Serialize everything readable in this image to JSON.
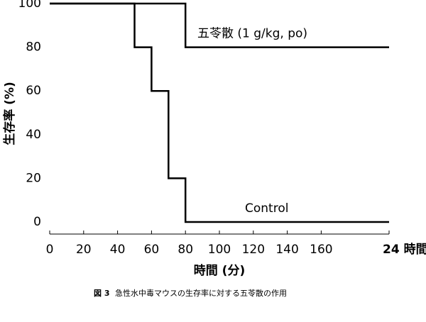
{
  "chart_data": {
    "type": "step",
    "x_label": "時間 (分)",
    "y_label": "生存率 (%)",
    "caption_number": "図 3",
    "caption": "急性水中毒マウスの生存率に対する五苓散の作用",
    "xlim": [
      0,
      1440
    ],
    "x_break": [
      180,
      1440
    ],
    "xticks": [
      0,
      20,
      40,
      60,
      80,
      100,
      120,
      140,
      160,
      {
        "value": 1440,
        "label": "24 時間"
      }
    ],
    "ylim": [
      0,
      100
    ],
    "yticks": [
      0,
      20,
      40,
      60,
      80,
      100
    ],
    "series": [
      {
        "name": "五苓散 (1 g/kg, po)",
        "color": "#000000",
        "x": [
          0,
          80,
          1440
        ],
        "values": [
          100,
          80,
          80
        ]
      },
      {
        "name": "Control",
        "color": "#000000",
        "x": [
          0,
          50,
          60,
          70,
          80,
          1440
        ],
        "values": [
          100,
          80,
          60,
          20,
          0,
          0
        ]
      }
    ]
  }
}
